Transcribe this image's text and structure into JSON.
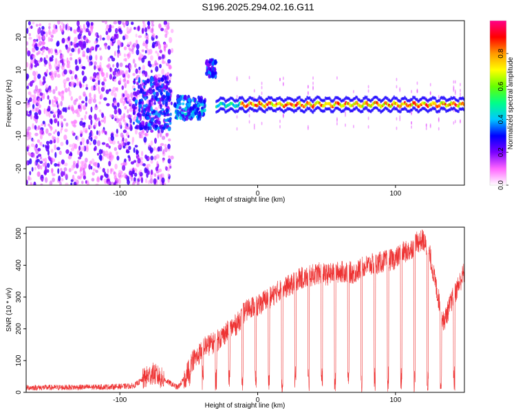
{
  "chart_data": [
    {
      "type": "heatmap",
      "title": "S196.2025.294.02.16.G11",
      "xlabel": "Height of straight line (km)",
      "ylabel": "Frequency (Hz)",
      "xlim": [
        -168,
        150
      ],
      "ylim": [
        -25,
        25
      ],
      "xticks": [
        -100,
        0,
        100
      ],
      "yticks": [
        -20,
        -10,
        0,
        10,
        20
      ],
      "colorbar": {
        "label": "Normalized spectral amplitude",
        "range": [
          0,
          1
        ],
        "ticks": [
          0.0,
          0.2,
          0.4,
          0.6,
          0.8
        ],
        "tick_labels": [
          "0.0",
          "0.2",
          "0.4",
          "0.6",
          "0.8"
        ],
        "colors": [
          "#ffffff",
          "#ff66ff",
          "#7a00ff",
          "#0000ff",
          "#00c8ff",
          "#00ff88",
          "#66ff00",
          "#ffff00",
          "#ff9900",
          "#ff0000",
          "#ff0088"
        ]
      },
      "features": [
        {
          "name": "diffuse noise region",
          "x_range": [
            -168,
            -62
          ],
          "freq_range": [
            -25,
            25
          ],
          "amplitude": 0.1
        },
        {
          "name": "scattered cluster",
          "x_range": [
            -90,
            -63
          ],
          "freq_range": [
            -8,
            8
          ],
          "amplitude": 0.3
        },
        {
          "name": "blue cluster",
          "x_range": [
            -60,
            -38
          ],
          "freq_range": [
            -5,
            2
          ],
          "amplitude": 0.35
        },
        {
          "name": "isolated blob",
          "x_range": [
            -37,
            -30
          ],
          "freq_range": [
            8,
            13
          ],
          "amplitude": 0.3
        },
        {
          "name": "signal line",
          "x_range": [
            -30,
            150
          ],
          "freq_center": -0.5,
          "amplitude": 0.8
        }
      ]
    },
    {
      "type": "line",
      "xlabel": "Height of straight line (km)",
      "ylabel": "SNR (10 * v/v)",
      "xlim": [
        -168,
        150
      ],
      "ylim": [
        0,
        520
      ],
      "xticks": [
        -100,
        0,
        100
      ],
      "yticks": [
        0,
        100,
        200,
        300,
        400,
        500
      ],
      "series": [
        {
          "name": "SNR",
          "color": "#ee3333",
          "x": [
            -168,
            -150,
            -130,
            -110,
            -90,
            -82,
            -76,
            -70,
            -64,
            -58,
            -52,
            -48,
            -44,
            -40,
            -35,
            -30,
            -25,
            -20,
            -15,
            -10,
            -5,
            0,
            5,
            10,
            15,
            20,
            25,
            30,
            35,
            40,
            45,
            50,
            55,
            60,
            65,
            70,
            75,
            80,
            85,
            90,
            95,
            100,
            105,
            110,
            115,
            120,
            125,
            130,
            135,
            140,
            145,
            150
          ],
          "values": [
            15,
            15,
            16,
            17,
            20,
            45,
            60,
            45,
            30,
            15,
            50,
            100,
            110,
            140,
            150,
            160,
            180,
            200,
            215,
            250,
            270,
            270,
            290,
            300,
            320,
            330,
            340,
            360,
            360,
            370,
            375,
            370,
            375,
            380,
            380,
            375,
            390,
            400,
            405,
            410,
            415,
            420,
            440,
            445,
            470,
            480,
            430,
            320,
            220,
            280,
            330,
            380
          ]
        }
      ]
    }
  ]
}
